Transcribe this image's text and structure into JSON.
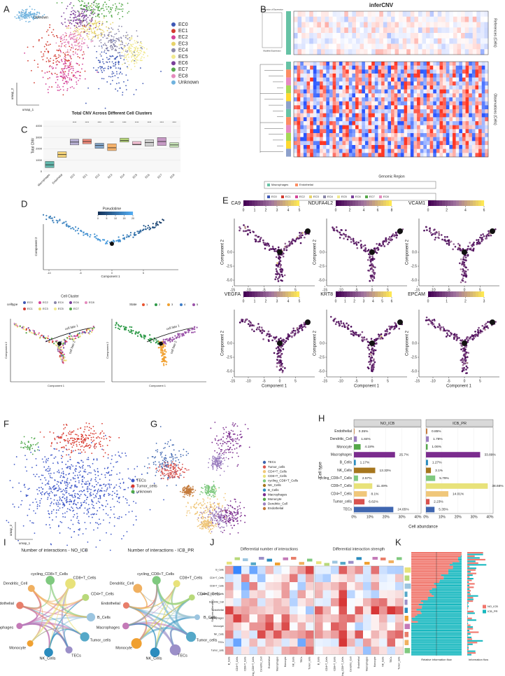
{
  "letters": [
    "A",
    "B",
    "C",
    "D",
    "E",
    "F",
    "G",
    "H",
    "I",
    "J",
    "K"
  ],
  "a": {
    "xlabel": "umap_1",
    "ylabel": "umap_2",
    "legend": [
      "EC0",
      "EC1",
      "EC2",
      "EC3",
      "EC4",
      "EC5",
      "EC6",
      "EC7",
      "EC8",
      "Unknown"
    ],
    "colors": [
      "#3f58b5",
      "#d23a2f",
      "#d4449a",
      "#e7d36a",
      "#8a86a8",
      "#f1e98f",
      "#7a3f9a",
      "#55a84a",
      "#e58bbd",
      "#6fb2de"
    ]
  },
  "b": {
    "title": "inferCNV",
    "colorkey_title": "Distribution of Expression",
    "colorkey_label": "Modified Expression",
    "ref_label": "References (Cells)",
    "obs_label": "Observations (Cells)",
    "xlabel": "Genomic Region",
    "legend1": [
      "Macrophages",
      "Endothelial"
    ],
    "legend2": [
      "EC0",
      "EC1",
      "EC2",
      "EC3",
      "EC4",
      "EC5",
      "EC6",
      "EC7",
      "EC8"
    ]
  },
  "c": {
    "title": "Total CNV Across Different Cell Clusters",
    "ylabel": "Total CNV",
    "categories": [
      "Macrophages",
      "Endothelial",
      "EC0",
      "EC1",
      "EC2",
      "EC3",
      "EC4",
      "EC5",
      "EC6",
      "EC7",
      "EC8"
    ],
    "q1": [
      350,
      1250,
      2350,
      2450,
      2050,
      1850,
      2600,
      2350,
      2250,
      2300,
      2150
    ],
    "medians": [
      600,
      1500,
      2600,
      2650,
      2300,
      2100,
      2750,
      2400,
      2550,
      2650,
      2350
    ],
    "q3": [
      900,
      1750,
      2850,
      2850,
      2500,
      2450,
      2950,
      2650,
      2800,
      3000,
      2550
    ],
    "colors": [
      "#63b7ac",
      "#f3d27a",
      "#b8b0d4",
      "#f08a7a",
      "#86a8cc",
      "#f6b26b",
      "#b8d77b",
      "#f6c3d6",
      "#cfcfcf",
      "#c79ac6",
      "#c6e2b6"
    ],
    "ylim": [
      0,
      4500
    ],
    "yticks": [
      0,
      1000,
      2000,
      3000,
      4000
    ],
    "signif": "****"
  },
  "d": {
    "legend_title": "Pseudotime",
    "legend_ticks": [
      0,
      5,
      10,
      15,
      20
    ],
    "xlabel": "Component 1",
    "ylabel": "Component 2",
    "xticks": [
      -10,
      -5,
      0,
      5
    ],
    "cluster_title": "Cell Cluster",
    "cluster_key": "celltype",
    "cluster_items": [
      "EC0",
      "EC2",
      "EC4",
      "EC6",
      "EC8",
      "EC1",
      "EC3",
      "EC5",
      "EC7"
    ],
    "state_title": "State",
    "state_items": [
      1,
      2,
      3,
      4,
      5
    ],
    "fates": [
      "cell fate 1",
      "cell fate 2"
    ]
  },
  "e": {
    "xlabel": "Component 1",
    "ylabel": "Component 2",
    "xticks": [
      -15,
      -10,
      -5,
      0,
      5
    ],
    "yticks": [
      {
        "value": 0,
        "label": "0.0"
      },
      {
        "value": -2.5,
        "label": "-2.5"
      },
      {
        "value": -5,
        "label": "-5.0"
      }
    ],
    "genes": [
      {
        "name": "CA9",
        "ticks": [
          0,
          1,
          2,
          3,
          4,
          5
        ]
      },
      {
        "name": "NDUFA4L2",
        "ticks": [
          0,
          2,
          4,
          6,
          8
        ]
      },
      {
        "name": "VCAM1",
        "ticks": [
          0,
          2,
          4,
          6
        ]
      },
      {
        "name": "VEGFA",
        "ticks": [
          0,
          1,
          2,
          3,
          4,
          5
        ]
      },
      {
        "name": "KRT8",
        "ticks": [
          0,
          1,
          2,
          3,
          4,
          5,
          6
        ]
      },
      {
        "name": "EPCAM",
        "ticks": [
          0,
          1,
          2,
          3
        ]
      }
    ]
  },
  "f": {
    "xlabel": "umap_1",
    "ylabel": "umap_2",
    "legend": [
      "TECs",
      "Tumor_cells",
      "unknown"
    ],
    "colors": [
      "#3f58c8",
      "#d93a2f",
      "#4fa84a"
    ]
  },
  "g": {
    "legend": [
      "TECs",
      "Tumor_cells",
      "CD4+T_Cells",
      "CD8+T_Cells",
      "cycling_CD8+T_Cells",
      "NK_Cells",
      "B_Cells",
      "Macrophages",
      "Monocyte",
      "Dendritic_Cell",
      "Endothelial"
    ],
    "colors": [
      "#3f66b0",
      "#d9534f",
      "#f0c77a",
      "#e8e27a",
      "#7fc97f",
      "#a6761d",
      "#2b8cbe",
      "#7b2c8e",
      "#55a84a",
      "#9b7fbf",
      "#c47a3a"
    ]
  },
  "h": {
    "groups": [
      "NO_ICB",
      "ICB_PR"
    ],
    "xlabel": "Cell abundance",
    "ylabel": "Cell type",
    "categories": [
      "Endothelial",
      "Dendritic_Cell",
      "Monocyte",
      "Macrophages",
      "B_Cells",
      "NK_Cells",
      "cycling_CD8+T_Cells",
      "CD8+T_Cells",
      "CD4+T_Cells",
      "Tumor_cells",
      "TECs"
    ],
    "colors": [
      "#c47a3a",
      "#9b7fbf",
      "#55a84a",
      "#7b2c8e",
      "#2b8cbe",
      "#a6761d",
      "#7fc97f",
      "#e8e27a",
      "#f0c77a",
      "#d9534f",
      "#3f66b0"
    ],
    "series": [
      {
        "name": "NO_ICB",
        "values": [
          0.35,
          1.84,
          4.18,
          25.7,
          1.17,
          13.33,
          2.57,
          11.49,
          8.1,
          6.62,
          24.65
        ],
        "value_labels": [
          "0.35%",
          "1.84%",
          "4.18%",
          "25.7%",
          "1.17%",
          "13.33%",
          "2.57%",
          "11.49%",
          "8.1%",
          "6.62%",
          "24.65%"
        ]
      },
      {
        "name": "ICB_PR",
        "values": [
          0.85,
          1.78,
          1.06,
          33.89,
          1.27,
          3.1,
          5.79,
          38.66,
          14.01,
          2.23,
          5.35
        ],
        "value_labels": [
          "0.85%",
          "1.78%",
          "1.06%",
          "33.89%",
          "1.27%",
          "3.1%",
          "5.79%",
          "38.66%",
          "14.01%",
          "2.23%",
          "5.35%"
        ]
      }
    ],
    "xlim": [
      0,
      42
    ],
    "xticks": [
      {
        "value": 0,
        "label": "0%"
      },
      {
        "value": 10,
        "label": "10%"
      },
      {
        "value": 20,
        "label": "20%"
      },
      {
        "value": 30,
        "label": "30%"
      },
      {
        "value": 40,
        "label": "40%"
      }
    ]
  },
  "i": {
    "titles": [
      "Number of interactions - NO_ICB",
      "Number of interactions - ICB_PR"
    ],
    "nodes": [
      "CD8+T_Cells",
      "CD4+T_Cells",
      "B_Cells",
      "Tumor_cells",
      "TECs",
      "NK_Cells",
      "Monocyte",
      "Macrophages",
      "Endothelial",
      "Dendritic_Cell",
      "cycling_CD8+T_Cells"
    ]
  },
  "j": {
    "titles": [
      "Differential number of interactions",
      "Differential interaction strength"
    ],
    "ylabel": "Sources (Sender)",
    "rows": [
      "B_Cells",
      "CD4+T_Cells",
      "CD8+T_Cells",
      "cycling_CD8+T_Cells",
      "Dendritic_Cell",
      "Endothelial",
      "Macrophages",
      "Monocyte",
      "NK_Cells",
      "TECs",
      "Tumor_cells"
    ]
  },
  "k": {
    "xlabels": [
      "Relative information flow",
      "Information flow"
    ],
    "legend": [
      "NO_ICB",
      "ICB_PR"
    ],
    "colors": [
      "#f0766c",
      "#18b8bf"
    ]
  }
}
